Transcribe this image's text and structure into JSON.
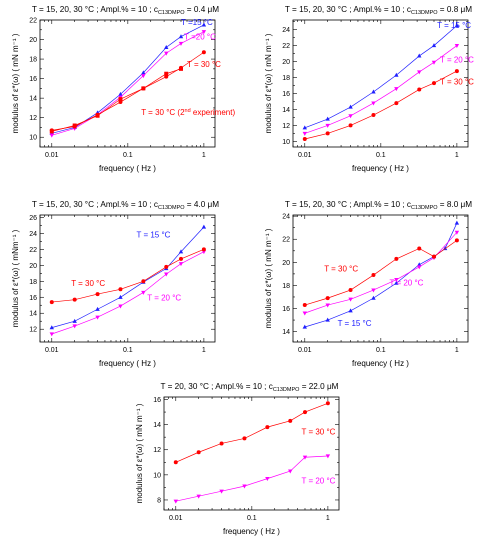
{
  "chart_data": [
    {
      "type": "line",
      "title": {
        "pre": "T = 15, 20, 30 °C ;  Ampl.% = 10 ;  c",
        "sub": "C13DMPO",
        "post": " = 0.4 μM"
      },
      "xlabel": "frequency ( Hz )",
      "ylabel": "modulus of ε*(ω)  ( mN m⁻¹ )",
      "xscale": "log",
      "xlim": [
        0.007,
        1.4
      ],
      "ylim": [
        9,
        22
      ],
      "xticks": [
        "0.01",
        "0.1",
        "1"
      ],
      "yticks": [
        "10",
        "12",
        "14",
        "16",
        "18",
        "20",
        "22"
      ],
      "grid": false,
      "series": [
        {
          "name": "T = 15 °C",
          "color": "#2020ff",
          "marker": "triangle-up",
          "x": [
            0.01,
            0.02,
            0.04,
            0.08,
            0.16,
            0.32,
            0.5,
            1.0
          ],
          "y": [
            10.4,
            11.0,
            12.5,
            14.4,
            16.6,
            19.2,
            20.3,
            21.5
          ]
        },
        {
          "name": "T =20 °C",
          "color": "#ff00ff",
          "marker": "triangle-down",
          "x": [
            0.01,
            0.02,
            0.04,
            0.08,
            0.16,
            0.32,
            0.5,
            1.0
          ],
          "y": [
            10.2,
            10.9,
            12.3,
            14.1,
            16.3,
            18.6,
            19.6,
            20.8
          ]
        },
        {
          "name": "T = 30 °C",
          "color": "#ff0000",
          "marker": "circle",
          "x": [
            0.01,
            0.02,
            0.04,
            0.08,
            0.16,
            0.32,
            0.5,
            1.0
          ],
          "y": [
            10.7,
            11.1,
            12.3,
            13.6,
            15.0,
            16.2,
            17.1,
            18.7
          ]
        },
        {
          "name": "T = 30 °C  (2nd experiment)",
          "color": "#ff0000",
          "marker": "square",
          "x": [
            0.01,
            0.02,
            0.04,
            0.08,
            0.16,
            0.32,
            0.5
          ],
          "y": [
            10.6,
            11.2,
            12.2,
            13.9,
            15.0,
            16.5,
            17.0
          ]
        }
      ],
      "labels": [
        {
          "text": "T =15 °C",
          "color": "#2020ff",
          "x": 0.5,
          "y": 21.5
        },
        {
          "text": "T =20 °C",
          "color": "#ff00ff",
          "x": 0.55,
          "y": 20.0
        },
        {
          "text": "T = 30 °C",
          "color": "#ff0000",
          "x": 0.6,
          "y": 17.2
        },
        {
          "text": "T = 30 °C  (2",
          "sup": "nd",
          "post": " experiment)",
          "color": "#ff0000",
          "x": 0.15,
          "y": 12.3
        }
      ]
    },
    {
      "type": "line",
      "title": {
        "pre": "T = 15, 20, 30 °C ;  Ampl.% = 10 ;  c",
        "sub": "C13DMPO",
        "post": " = 0.8 μM"
      },
      "xlabel": "frequency ( Hz )",
      "ylabel": "modulus of ε*(ω)  ( mN m⁻¹ )",
      "xscale": "log",
      "xlim": [
        0.007,
        1.4
      ],
      "ylim": [
        9.3,
        25.2
      ],
      "xticks": [
        "0.01",
        "0.1",
        "1"
      ],
      "yticks": [
        "10",
        "12",
        "14",
        "16",
        "18",
        "20",
        "22",
        "24"
      ],
      "grid": false,
      "series": [
        {
          "name": "T = 15 °C",
          "color": "#2020ff",
          "marker": "triangle-up",
          "x": [
            0.01,
            0.02,
            0.04,
            0.08,
            0.16,
            0.32,
            0.5,
            1.0
          ],
          "y": [
            11.7,
            12.8,
            14.3,
            16.2,
            18.3,
            20.7,
            22.0,
            24.5
          ]
        },
        {
          "name": "T = 20 °C",
          "color": "#ff00ff",
          "marker": "triangle-down",
          "x": [
            0.01,
            0.02,
            0.04,
            0.08,
            0.16,
            0.32,
            0.5,
            1.0
          ],
          "y": [
            11.0,
            12.0,
            13.2,
            14.8,
            16.6,
            18.7,
            19.9,
            22.0
          ]
        },
        {
          "name": "T = 30 °C",
          "color": "#ff0000",
          "marker": "circle",
          "x": [
            0.01,
            0.02,
            0.04,
            0.08,
            0.16,
            0.32,
            0.5,
            1.0
          ],
          "y": [
            10.3,
            11.0,
            12.0,
            13.3,
            14.8,
            16.5,
            17.3,
            18.8
          ]
        }
      ],
      "labels": [
        {
          "text": "T = 15 °C",
          "color": "#2020ff",
          "x": 0.55,
          "y": 24.2
        },
        {
          "text": "T = 20 °C",
          "color": "#ff00ff",
          "x": 0.6,
          "y": 19.9
        },
        {
          "text": "T = 30 °C",
          "color": "#ff0000",
          "x": 0.6,
          "y": 17.1
        }
      ]
    },
    {
      "type": "line",
      "title": {
        "pre": "T = 15, 20, 30 °C ;  Ampl.% = 10 ;  c",
        "sub": "C13DMPO",
        "post": " = 4.0 μM"
      },
      "xlabel": "frequency ( Hz )",
      "ylabel": "modulus of ε*(ω)  ( mNm⁻¹ )",
      "xscale": "log",
      "xlim": [
        0.007,
        1.4
      ],
      "ylim": [
        10.4,
        26.3
      ],
      "xticks": [
        "0.01",
        "0.1",
        "1"
      ],
      "yticks": [
        "12",
        "14",
        "16",
        "18",
        "20",
        "22",
        "24",
        "26"
      ],
      "grid": false,
      "series": [
        {
          "name": "T = 15 °C",
          "color": "#2020ff",
          "marker": "triangle-up",
          "x": [
            0.01,
            0.02,
            0.04,
            0.08,
            0.16,
            0.32,
            0.5,
            1.0
          ],
          "y": [
            12.2,
            13.0,
            14.5,
            16.0,
            17.9,
            19.6,
            21.7,
            24.8
          ]
        },
        {
          "name": "T = 20 °C",
          "color": "#ff00ff",
          "marker": "triangle-down",
          "x": [
            0.01,
            0.02,
            0.04,
            0.08,
            0.16,
            0.32,
            0.5,
            1.0
          ],
          "y": [
            11.4,
            12.4,
            13.5,
            14.9,
            16.6,
            18.9,
            20.2,
            21.7
          ]
        },
        {
          "name": "T = 30 °C",
          "color": "#ff0000",
          "marker": "circle",
          "x": [
            0.01,
            0.02,
            0.04,
            0.08,
            0.16,
            0.32,
            0.5,
            1.0
          ],
          "y": [
            15.4,
            15.7,
            16.4,
            17.0,
            18.0,
            19.8,
            20.8,
            22.0
          ]
        }
      ],
      "labels": [
        {
          "text": "T = 15 °C",
          "color": "#2020ff",
          "x": 0.13,
          "y": 23.5
        },
        {
          "text": "T = 30 °C",
          "color": "#ff0000",
          "x": 0.018,
          "y": 17.4
        },
        {
          "text": "T = 20 °C",
          "color": "#ff00ff",
          "x": 0.18,
          "y": 15.6
        }
      ]
    },
    {
      "type": "line",
      "title": {
        "pre": "T = 15, 20, 30 °C ;  Ampl.% = 10 ;  c",
        "sub": "C13DMPO",
        "post": " = 8.0 μM"
      },
      "xlabel": "frequency ( Hz )",
      "ylabel": "modulus of ε*(ω)  ( mN m⁻¹ )",
      "xscale": "log",
      "xlim": [
        0.007,
        1.4
      ],
      "ylim": [
        13.1,
        24.1
      ],
      "xticks": [
        "0.01",
        "0.1",
        "1"
      ],
      "yticks": [
        "14",
        "16",
        "18",
        "20",
        "22",
        "24"
      ],
      "grid": false,
      "series": [
        {
          "name": "T = 15 °C",
          "color": "#2020ff",
          "marker": "triangle-up",
          "x": [
            0.01,
            0.02,
            0.04,
            0.08,
            0.16,
            0.32,
            0.5,
            0.7,
            1.0
          ],
          "y": [
            14.4,
            15.0,
            15.8,
            16.9,
            18.2,
            19.8,
            20.5,
            21.2,
            23.4
          ]
        },
        {
          "name": "T = 20 °C",
          "color": "#ff00ff",
          "marker": "triangle-down",
          "x": [
            0.01,
            0.02,
            0.04,
            0.08,
            0.16,
            0.32,
            0.5,
            1.0
          ],
          "y": [
            15.6,
            16.3,
            16.8,
            17.6,
            18.5,
            19.6,
            20.4,
            22.6
          ]
        },
        {
          "name": "T = 30 °C",
          "color": "#ff0000",
          "marker": "circle",
          "x": [
            0.01,
            0.02,
            0.04,
            0.08,
            0.16,
            0.32,
            0.5,
            1.0
          ],
          "y": [
            16.3,
            16.9,
            17.6,
            18.9,
            20.3,
            21.2,
            20.5,
            21.9
          ]
        }
      ],
      "labels": [
        {
          "text": "T = 30 °C",
          "color": "#ff0000",
          "x": 0.018,
          "y": 19.2
        },
        {
          "text": "T = 20 °C",
          "color": "#ff00ff",
          "x": 0.13,
          "y": 18.0
        },
        {
          "text": "T = 15 °C",
          "color": "#2020ff",
          "x": 0.027,
          "y": 14.5
        }
      ]
    },
    {
      "type": "line",
      "title": {
        "pre": "T = 20, 30 °C ;     Ampl.% = 10 ;  c",
        "sub": "C13DMPO",
        "post": " = 22.0 μM"
      },
      "xlabel": "frequency ( Hz )",
      "ylabel": "modulus of ε*(ω)  ( mN m⁻¹ )",
      "xscale": "log",
      "xlim": [
        0.007,
        1.4
      ],
      "ylim": [
        7.2,
        16.2
      ],
      "xticks": [
        "0.01",
        "0.1",
        "1"
      ],
      "yticks": [
        "8",
        "10",
        "12",
        "14",
        "16"
      ],
      "grid": false,
      "series": [
        {
          "name": "T = 30 °C",
          "color": "#ff0000",
          "marker": "circle",
          "x": [
            0.01,
            0.02,
            0.04,
            0.08,
            0.16,
            0.32,
            0.5,
            1.0
          ],
          "y": [
            11.0,
            11.8,
            12.5,
            12.9,
            13.8,
            14.3,
            15.0,
            15.7
          ]
        },
        {
          "name": "T = 20 °C",
          "color": "#ff00ff",
          "marker": "triangle-down",
          "x": [
            0.01,
            0.02,
            0.04,
            0.08,
            0.16,
            0.32,
            0.5,
            1.0
          ],
          "y": [
            7.9,
            8.3,
            8.7,
            9.1,
            9.7,
            10.3,
            11.4,
            11.5
          ]
        }
      ],
      "labels": [
        {
          "text": "T = 30 °C",
          "color": "#ff0000",
          "x": 0.45,
          "y": 13.2
        },
        {
          "text": "T = 20 °C",
          "color": "#ff00ff",
          "x": 0.45,
          "y": 9.3
        }
      ]
    }
  ]
}
